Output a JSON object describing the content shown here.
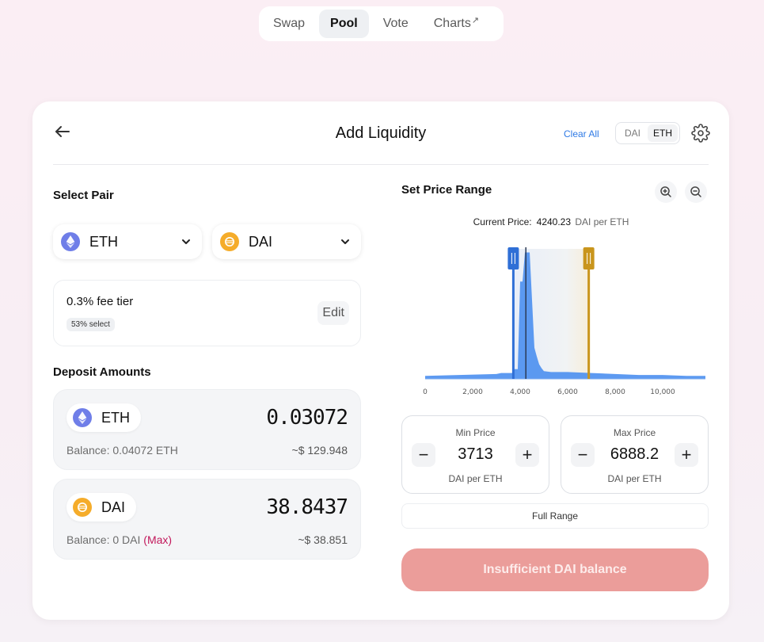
{
  "nav": {
    "items": [
      {
        "label": "Swap"
      },
      {
        "label": "Pool"
      },
      {
        "label": "Vote"
      },
      {
        "label": "Charts"
      }
    ],
    "active": "Pool",
    "external_glyph": "↗"
  },
  "header": {
    "title": "Add Liquidity",
    "clear_all": "Clear All",
    "toggle": [
      "DAI",
      "ETH"
    ],
    "toggle_active": "ETH"
  },
  "select_pair": {
    "label": "Select Pair",
    "token_a": {
      "symbol": "ETH",
      "icon": "eth-icon"
    },
    "token_b": {
      "symbol": "DAI",
      "icon": "dai-icon"
    }
  },
  "fee": {
    "title": "0.3% fee tier",
    "badge": "53% select",
    "edit_label": "Edit"
  },
  "deposit": {
    "label": "Deposit Amounts",
    "eth": {
      "symbol": "ETH",
      "amount": "0.03072",
      "balance": "Balance: 0.04072 ETH",
      "usd": "~$ 129.948"
    },
    "dai": {
      "symbol": "DAI",
      "amount": "38.8437",
      "balance": "Balance: 0 DAI",
      "max_label": "(Max)",
      "usd": "~$ 38.851"
    }
  },
  "price_range": {
    "label": "Set Price Range",
    "current_price_label": "Current Price:",
    "current_price_value": "4240.23",
    "current_price_unit": "DAI per ETH",
    "min": {
      "label": "Min Price",
      "value": "3713",
      "unit": "DAI per ETH"
    },
    "max": {
      "label": "Max Price",
      "value": "6888.2",
      "unit": "DAI per ETH"
    },
    "full_range": "Full Range",
    "action_label": "Insufficient DAI balance"
  },
  "colors": {
    "accent_blue": "#2f7ae5",
    "liquidity_blue": "#4b8ff0",
    "min_handle": "#2f6fd6",
    "max_handle": "#c9951c",
    "action_disabled": "#eb9d9a",
    "max_link": "#c2185b"
  },
  "chart_data": {
    "type": "area",
    "xlim": [
      0,
      11800
    ],
    "x_ticks": [
      "0",
      "2,000",
      "4,000",
      "6,000",
      "8,000",
      "10,000"
    ],
    "x_tick_values": [
      0,
      2000,
      4000,
      6000,
      8000,
      10000
    ],
    "current_price": 4240.23,
    "min_price": 3713,
    "max_price": 6888.2,
    "series": [
      {
        "x": [
          0,
          3000,
          3200,
          3250,
          3713,
          3714,
          3900,
          4000,
          4100,
          4200,
          4400,
          4600,
          4700,
          4800,
          4900,
          5000,
          5300,
          6000,
          7000,
          8000,
          9000,
          10000,
          11000,
          11800
        ],
        "y": [
          3,
          5,
          6,
          6,
          6,
          10,
          10,
          100,
          100,
          130,
          130,
          32,
          23,
          15,
          11,
          8,
          7,
          7,
          6,
          5,
          4,
          4,
          3,
          3
        ]
      }
    ]
  }
}
